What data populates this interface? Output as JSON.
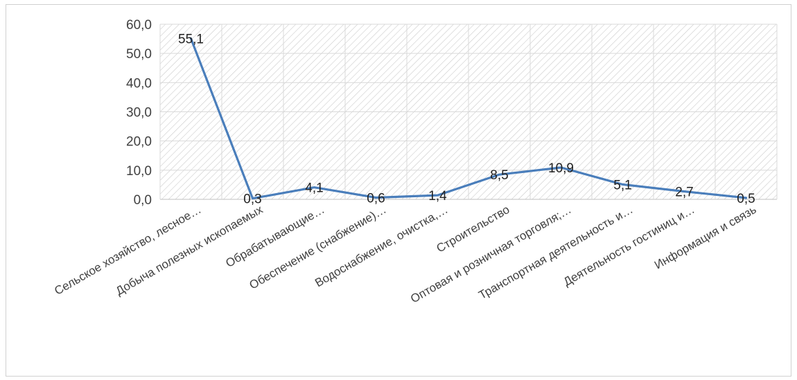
{
  "chart_data": {
    "type": "line",
    "title": "",
    "xlabel": "",
    "ylabel": "",
    "ylim": [
      0,
      60
    ],
    "y_tick_labels": [
      "0,0",
      "10,0",
      "20,0",
      "30,0",
      "40,0",
      "50,0",
      "60,0"
    ],
    "grid": true,
    "plot_background": "diagonal-hatch",
    "categories": [
      "Сельское хозяйство, лесное…",
      "Добыча полезных ископаемых",
      "Обрабатывающие…",
      "Обеспечение (снабжение)…",
      "Водоснабжение, очистка,…",
      "Строительство",
      "Оптовая и розничная торговля;…",
      "Транспортная деятельность и…",
      "Деятельность гостиниц и…",
      "Информация и связь"
    ],
    "values": [
      55.1,
      0.3,
      4.1,
      0.6,
      1.4,
      8.5,
      10.9,
      5.1,
      2.7,
      0.5
    ],
    "data_labels": [
      "55,1",
      "0,3",
      "4,1",
      "0,6",
      "1,4",
      "8,5",
      "10,9",
      "5,1",
      "2,7",
      "0,5"
    ],
    "line_color": "#4a7ebb",
    "gridline_color": "#d9d9d9",
    "hatch_color": "#c8c8c8"
  }
}
